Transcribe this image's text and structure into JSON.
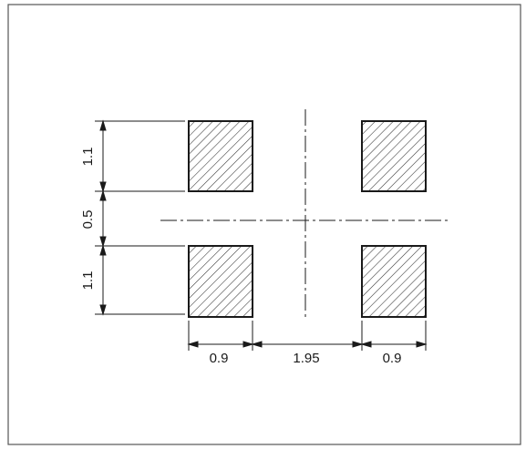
{
  "diagram": {
    "dimensions": {
      "pad_height_top": "1.1",
      "pad_gap_vertical": "0.5",
      "pad_height_bottom": "1.1",
      "pad_width_left": "0.9",
      "pad_gap_horizontal": "1.95",
      "pad_width_right": "0.9"
    },
    "pads": [
      {
        "id": "top-left"
      },
      {
        "id": "top-right"
      },
      {
        "id": "bottom-left"
      },
      {
        "id": "bottom-right"
      }
    ],
    "colors": {
      "line": "#1a1a1a",
      "hatch": "#333333",
      "frame": "#555555"
    }
  }
}
